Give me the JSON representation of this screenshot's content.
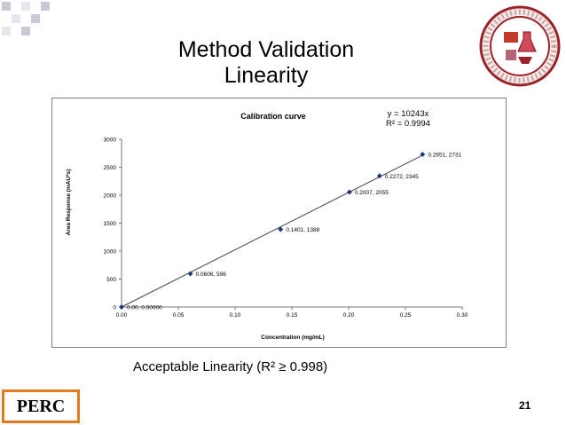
{
  "slide": {
    "title_line1": "Method Validation",
    "title_line2": "Linearity",
    "footnote": "Acceptable Linearity  (R² ≥ 0.998)",
    "logo_text": "PERC",
    "slide_number": "21",
    "accent_color": "#e07b1f"
  },
  "chart_data": {
    "type": "scatter",
    "title": "Calibration curve",
    "xlabel": "Concentration (mg/mL)",
    "ylabel": "Area Response (mAU*s)",
    "xlim": [
      0,
      0.3
    ],
    "ylim": [
      0,
      3000
    ],
    "x_ticks": [
      "0.00",
      "0.05",
      "0.10",
      "0.15",
      "0.20",
      "0.25",
      "0.30"
    ],
    "x_tick_values": [
      0,
      0.05,
      0.1,
      0.15,
      0.2,
      0.25,
      0.3
    ],
    "y_ticks": [
      "0",
      "500",
      "1000",
      "1500",
      "2000",
      "2500",
      "3000"
    ],
    "y_tick_values": [
      0,
      500,
      1000,
      1500,
      2000,
      2500,
      3000
    ],
    "grid": false,
    "trendline": {
      "slope": 10243,
      "equation": "y = 10243x",
      "r_squared": "R² = 0.9994"
    },
    "marker_color": "#1f3a7a",
    "series": [
      {
        "x": [
          0,
          0.0606,
          0.1401,
          0.2007,
          0.2272,
          0.2651
        ],
        "y": [
          0,
          596,
          1388,
          2055,
          2345,
          2731
        ],
        "labels": [
          "0.00, 0.00000",
          "0.0606, 596",
          "0.1401, 1388",
          "0.2007, 2055",
          "0.2272, 2345",
          "0.2651, 2731"
        ]
      }
    ]
  }
}
